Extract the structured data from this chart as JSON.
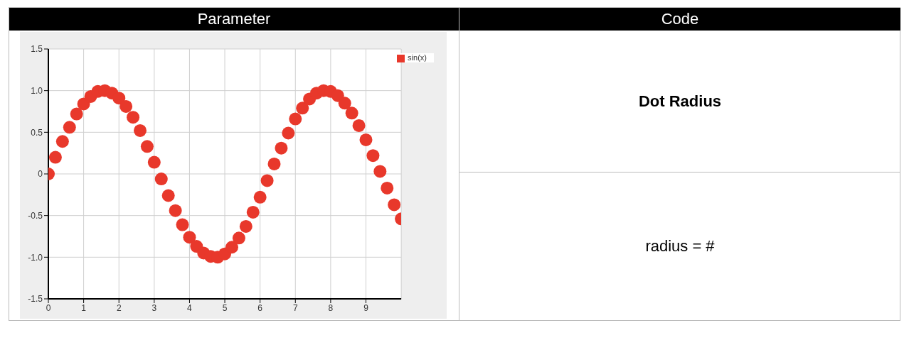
{
  "chart_data": [
    {
      "type": "scatter",
      "title": "Parameter",
      "x": [
        0,
        0.2,
        0.4,
        0.6,
        0.8,
        1,
        1.2,
        1.4,
        1.6,
        1.8,
        2,
        2.2,
        2.4,
        2.6,
        2.8,
        3,
        3.2,
        3.4,
        3.6,
        3.8,
        4,
        4.2,
        4.4,
        4.6,
        4.8,
        5,
        5.2,
        5.4,
        5.6,
        5.8,
        6,
        6.2,
        6.4,
        6.6,
        6.8,
        7,
        7.2,
        7.4,
        7.6,
        7.8,
        8,
        8.2,
        8.4,
        8.6,
        8.8,
        9,
        9.2,
        9.4,
        9.6,
        9.8,
        10
      ],
      "series": [
        {
          "name": "sin(x)",
          "color": "#e8382b",
          "values": [
            0,
            0.2,
            0.39,
            0.56,
            0.72,
            0.84,
            0.93,
            0.99,
            1.0,
            0.97,
            0.91,
            0.81,
            0.68,
            0.52,
            0.33,
            0.14,
            -0.06,
            -0.26,
            -0.44,
            -0.61,
            -0.76,
            -0.87,
            -0.95,
            -0.99,
            -1.0,
            -0.96,
            -0.88,
            -0.77,
            -0.63,
            -0.46,
            -0.28,
            -0.08,
            0.12,
            0.31,
            0.49,
            0.66,
            0.79,
            0.9,
            0.97,
            1.0,
            0.99,
            0.94,
            0.85,
            0.73,
            0.58,
            0.41,
            0.22,
            0.03,
            -0.17,
            -0.37,
            -0.54
          ]
        }
      ],
      "xlim": [
        0,
        10
      ],
      "xticks": [
        0,
        1,
        2,
        3,
        4,
        5,
        6,
        7,
        8,
        9
      ],
      "ylim": [
        -1.5,
        1.5
      ],
      "yticks": [
        {
          "value": -1.5,
          "label": "-1.5"
        },
        {
          "value": -1,
          "label": "-1.0"
        },
        {
          "value": -0.5,
          "label": "-0.5"
        },
        0,
        {
          "value": 0.5,
          "label": "0.5"
        },
        {
          "value": 1,
          "label": "1.0"
        },
        {
          "value": 1.5,
          "label": "1.5"
        }
      ],
      "grid": true,
      "legend": "top right",
      "marker": "circle"
    },
    {
      "type": "other",
      "title": "Code",
      "annotations": [
        "Dot Radius",
        "radius = #"
      ]
    }
  ]
}
